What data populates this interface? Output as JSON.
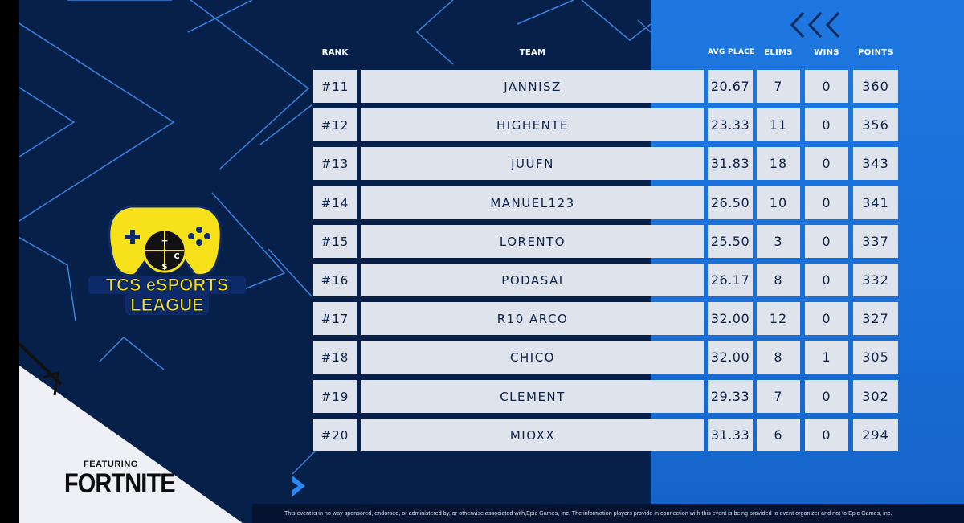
{
  "headers": {
    "rank": "RANK",
    "team": "TEAM",
    "avg_place": "AVG PLACE",
    "elims": "ELIMS",
    "wins": "WINS",
    "points": "POINTS"
  },
  "rows": [
    {
      "rank": "#11",
      "team": "JANNISZ",
      "avg": "20.67",
      "elims": "7",
      "wins": "0",
      "points": "360"
    },
    {
      "rank": "#12",
      "team": "HIGHENTE",
      "avg": "23.33",
      "elims": "11",
      "wins": "0",
      "points": "356"
    },
    {
      "rank": "#13",
      "team": "JUUFN",
      "avg": "31.83",
      "elims": "18",
      "wins": "0",
      "points": "343"
    },
    {
      "rank": "#14",
      "team": "MANUEL123",
      "avg": "26.50",
      "elims": "10",
      "wins": "0",
      "points": "341"
    },
    {
      "rank": "#15",
      "team": "LORENTO",
      "avg": "25.50",
      "elims": "3",
      "wins": "0",
      "points": "337"
    },
    {
      "rank": "#16",
      "team": "PODASAI",
      "avg": "26.17",
      "elims": "8",
      "wins": "0",
      "points": "332"
    },
    {
      "rank": "#17",
      "team": "R10 ARCO",
      "avg": "32.00",
      "elims": "12",
      "wins": "0",
      "points": "327"
    },
    {
      "rank": "#18",
      "team": "CHICO",
      "avg": "32.00",
      "elims": "8",
      "wins": "1",
      "points": "305"
    },
    {
      "rank": "#19",
      "team": "CLEMENT",
      "avg": "29.33",
      "elims": "7",
      "wins": "0",
      "points": "302"
    },
    {
      "rank": "#20",
      "team": "MIOXX",
      "avg": "31.33",
      "elims": "6",
      "wins": "0",
      "points": "294"
    }
  ],
  "logo": {
    "line1": "TCS eSPORTS",
    "line2": "LEAGUE",
    "letter_t": "T",
    "letter_c": "C",
    "letter_s": "S"
  },
  "branding": {
    "featuring": "FEATURING",
    "game": "FORTNITE"
  },
  "disclaimer": "This event is in no way sponsored, endorsed, or administered by, or otherwise associated with,Epic Games, Inc. The information players provide in connection with this event is being provided to event organizer and not to Epic Games, inc.",
  "icons": {
    "top_right": "triple-chevron-left-icon",
    "bottom_arrow": "chevron-right-icon",
    "controller": "gamepad-icon"
  },
  "colors": {
    "background": "#06204a",
    "panel_blue": "#1a6fd8",
    "cell_bg": "#dfe4ec",
    "cell_text": "#0c2149",
    "line_blue": "#3d8ef0",
    "logo_yellow": "#f7e11b"
  }
}
